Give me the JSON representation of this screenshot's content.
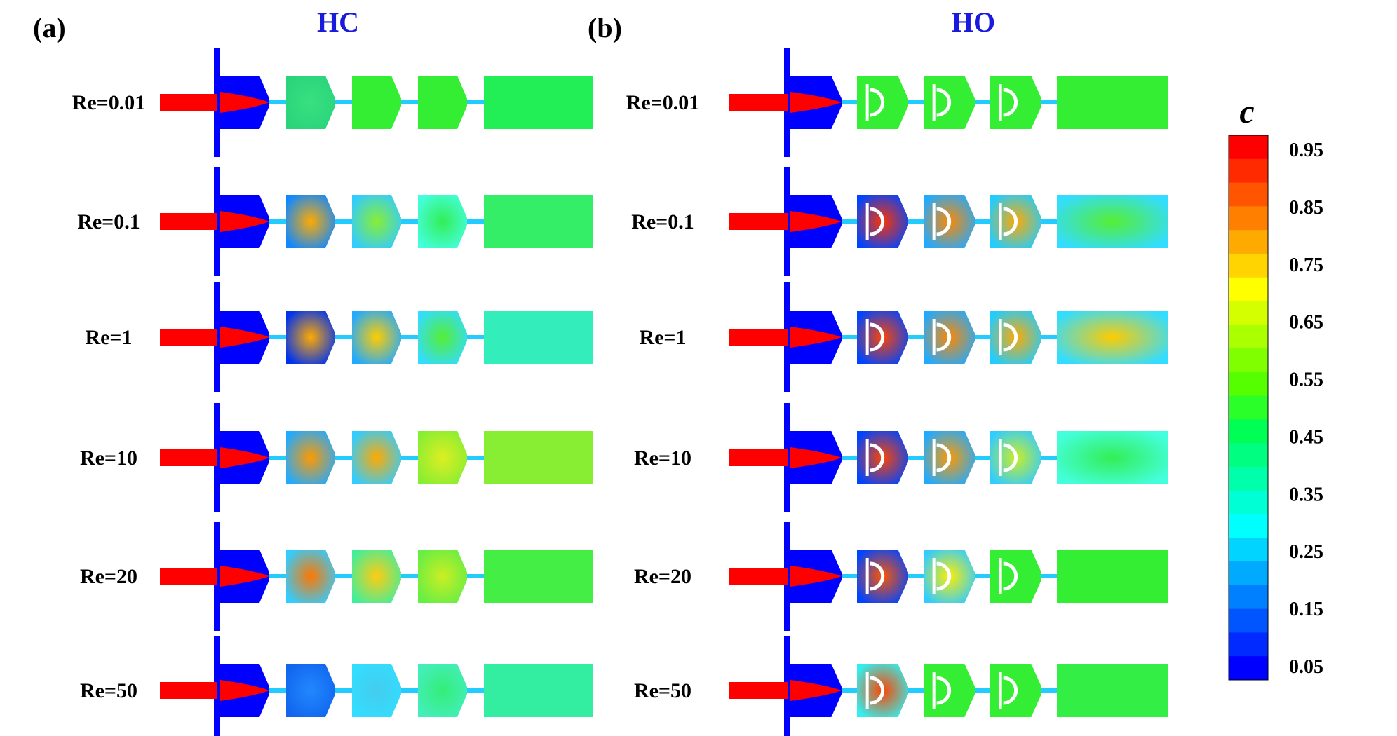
{
  "panels": [
    {
      "letter": "(a)",
      "title": "HC",
      "rows": [
        "Re=0.01",
        "Re=0.1",
        "Re=1",
        "Re=10",
        "Re=20",
        "Re=50"
      ]
    },
    {
      "letter": "(b)",
      "title": "HO",
      "rows": [
        "Re=0.01",
        "Re=0.1",
        "Re=1",
        "Re=10",
        "Re=20",
        "Re=50"
      ]
    }
  ],
  "colorbar": {
    "title": "c",
    "ticks": [
      "0.95",
      "0.85",
      "0.75",
      "0.65",
      "0.55",
      "0.45",
      "0.35",
      "0.25",
      "0.15",
      "0.05"
    ],
    "colors": [
      "#ff0000",
      "#ff2a00",
      "#ff5500",
      "#ff8000",
      "#ffaa00",
      "#ffd400",
      "#ffff00",
      "#d4ff00",
      "#aaff00",
      "#80ff00",
      "#55ff00",
      "#2aff2a",
      "#00ff55",
      "#00ff80",
      "#00ffaa",
      "#00ffd4",
      "#00ffff",
      "#00d4ff",
      "#00aaff",
      "#0080ff",
      "#0055ff",
      "#002aff",
      "#0000ff"
    ]
  },
  "field_colors": {
    "HC": {
      "Re=0.01": {
        "jet": "#ff0000",
        "c1": [
          "#2ad47a",
          "#38e080"
        ],
        "c2": "#33ee33",
        "c3": "#33ee33",
        "out": "#22ee55"
      },
      "Re=0.1": {
        "jet": "#ff0000",
        "c1": [
          "#1188ff",
          "#ffaa00"
        ],
        "c2": [
          "#33ccff",
          "#88ee33"
        ],
        "c3": [
          "#44ffdd",
          "#33ee55"
        ],
        "out": "#33ee66"
      },
      "Re=1": {
        "jet": "#ff0000",
        "c1": [
          "#0033ee",
          "#ffaa00"
        ],
        "c2": [
          "#22aaff",
          "#ffcc00"
        ],
        "c3": [
          "#33ddff",
          "#55ee33"
        ],
        "out": "#33eebb"
      },
      "Re=10": {
        "jet": "#ff0000",
        "c1": [
          "#22aaff",
          "#ff9900"
        ],
        "c2": [
          "#33ccff",
          "#ffaa00"
        ],
        "c3": [
          "#88ee33",
          "#ddee22"
        ],
        "out": "#88ee33"
      },
      "Re=20": {
        "jet": "#ff0000",
        "c1": [
          "#33ccff",
          "#ff7700"
        ],
        "c2": [
          "#44ee99",
          "#ffcc11"
        ],
        "c3": [
          "#66ee44",
          "#ccee22"
        ],
        "out": "#44ee44"
      },
      "Re=50": {
        "jet": "#ff0000",
        "c1": [
          "#1166ee",
          "#2288ff"
        ],
        "c2": [
          "#33ddff",
          "#44ccee"
        ],
        "c3": [
          "#44eebb",
          "#33ee77"
        ],
        "out": "#33eea0"
      }
    },
    "HO": {
      "Re=0.01": {
        "jet": "#ff0000",
        "c1": "#33ee33",
        "c2": "#33ee33",
        "c3": "#33ee33",
        "out": "#33ee33"
      },
      "Re=0.1": {
        "jet": "#ff0000",
        "c1": [
          "#0044ff",
          "#ff3300"
        ],
        "c2": [
          "#22aaff",
          "#ff8800"
        ],
        "c3": [
          "#22ccff",
          "#ffaa00"
        ],
        "out": [
          "#33ddff",
          "#55ee33"
        ]
      },
      "Re=1": {
        "jet": "#ff0000",
        "c1": [
          "#0044ff",
          "#ff4400"
        ],
        "c2": [
          "#22aaff",
          "#ff8800"
        ],
        "c3": [
          "#22ccff",
          "#ffaa00"
        ],
        "out": [
          "#33ddff",
          "#ffcc00"
        ]
      },
      "Re=10": {
        "jet": "#ff0000",
        "c1": [
          "#0044ff",
          "#ff4400"
        ],
        "c2": [
          "#22aaff",
          "#ff9900"
        ],
        "c3": [
          "#33ccff",
          "#ccee22"
        ],
        "out": [
          "#44ffdd",
          "#33ee55"
        ]
      },
      "Re=20": {
        "jet": "#ff0000",
        "c1": [
          "#0044ff",
          "#ff5500"
        ],
        "c2": [
          "#33ccff",
          "#ffee00"
        ],
        "c3": "#33ee33",
        "out": "#33ee33"
      },
      "Re=50": {
        "jet": "#ff0000",
        "c1": [
          "#33eeee",
          "#ff4400"
        ],
        "c2": "#33ee33",
        "c3": "#33ee33",
        "out": "#33ee44"
      }
    }
  }
}
